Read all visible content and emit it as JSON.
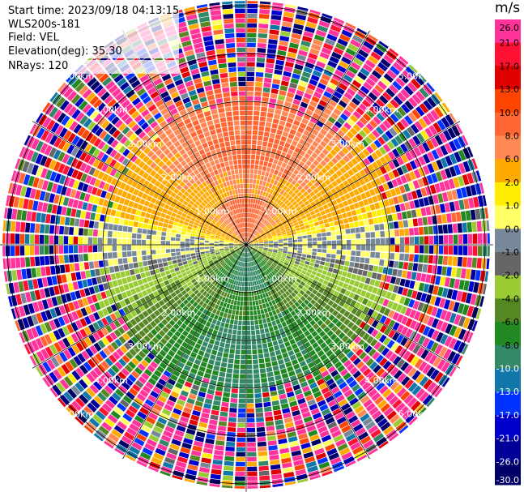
{
  "info": {
    "start_time": "Start time: 2023/09/18 04:13:15",
    "instrument": "WLS200s-181",
    "field": "Field: VEL",
    "elevation": "Elevation(deg): 35.30",
    "nrays": "NRays: 120"
  },
  "colorbar": {
    "unit": "m/s",
    "labels": [
      "26.0",
      "21.0",
      "17.0",
      "13.0",
      "10.0",
      "8.0",
      "6.0",
      "2.0",
      "1.0",
      "0.0",
      "-1.0",
      "-2.0",
      "-4.0",
      "-6.0",
      "-8.0",
      "-10.0",
      "-13.0",
      "-17.0",
      "-21.0",
      "-26.0",
      "-30.0"
    ],
    "colors": [
      "#ff3399",
      "#ff1133",
      "#e00000",
      "#ff4400",
      "#ff6633",
      "#ff8855",
      "#ffaa00",
      "#ffee00",
      "#ffff66",
      "#778899",
      "#666666",
      "#99cc33",
      "#558822",
      "#228822",
      "#338866",
      "#1177aa",
      "#0033ff",
      "#0000cc",
      "#000099",
      "#000066"
    ]
  },
  "chart_data": {
    "type": "ppi",
    "field": "VEL",
    "units": "m/s",
    "elevation_deg": 35.3,
    "nrays": 120,
    "range_rings": [
      {
        "range_km": 1.0,
        "label": "1.00km"
      },
      {
        "range_km": 2.0,
        "label": "2.00km"
      },
      {
        "range_km": 3.0,
        "label": "3.00km"
      },
      {
        "range_km": 4.0,
        "label": "4.00km"
      },
      {
        "range_km": 5.0,
        "label": "5.00km"
      }
    ],
    "max_range_km": 5.1,
    "velocity_pattern": {
      "toward_sector_center_deg": 0,
      "away_sector_center_deg": 180,
      "zero_line_bearings_deg": [
        90,
        270
      ],
      "coherent_range_km": 3.2
    },
    "vmin": -30.0,
    "vmax": 30.0
  }
}
